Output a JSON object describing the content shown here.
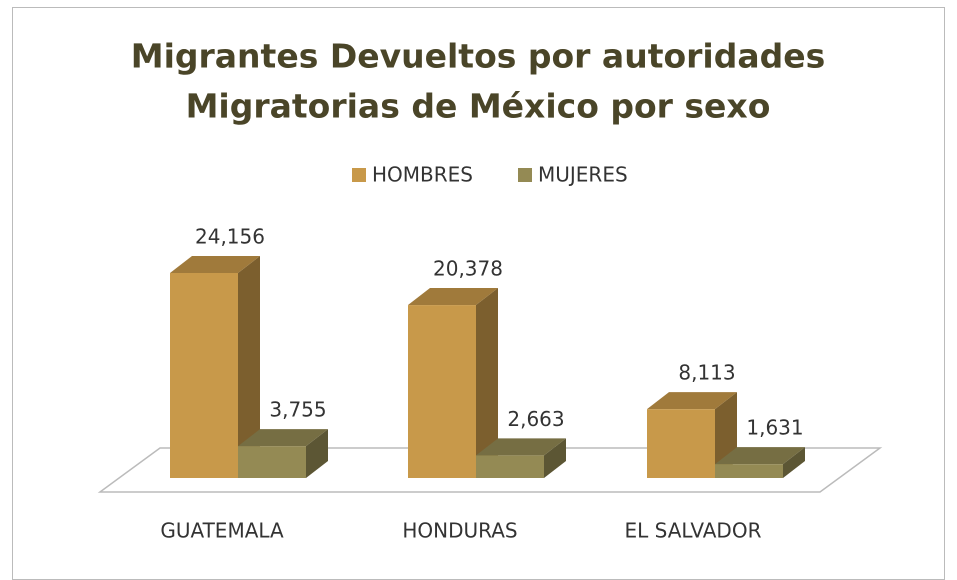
{
  "chart_data": {
    "type": "bar3d",
    "title": [
      "Migrantes Devueltos por autoridades",
      "Migratorias de México por sexo"
    ],
    "categories": [
      "GUATEMALA",
      "HONDURAS",
      "EL SALVADOR"
    ],
    "series": [
      {
        "name": "HOMBRES",
        "color": "#c8994a",
        "values": [
          24156,
          20378,
          8113
        ],
        "value_labels": [
          "24,156",
          "20,378",
          "8,113"
        ]
      },
      {
        "name": "MUJERES",
        "color": "#948a54",
        "values": [
          3755,
          2663,
          1631
        ],
        "value_labels": [
          "3,755",
          "2,663",
          "1,631"
        ]
      }
    ],
    "legend": "top"
  }
}
